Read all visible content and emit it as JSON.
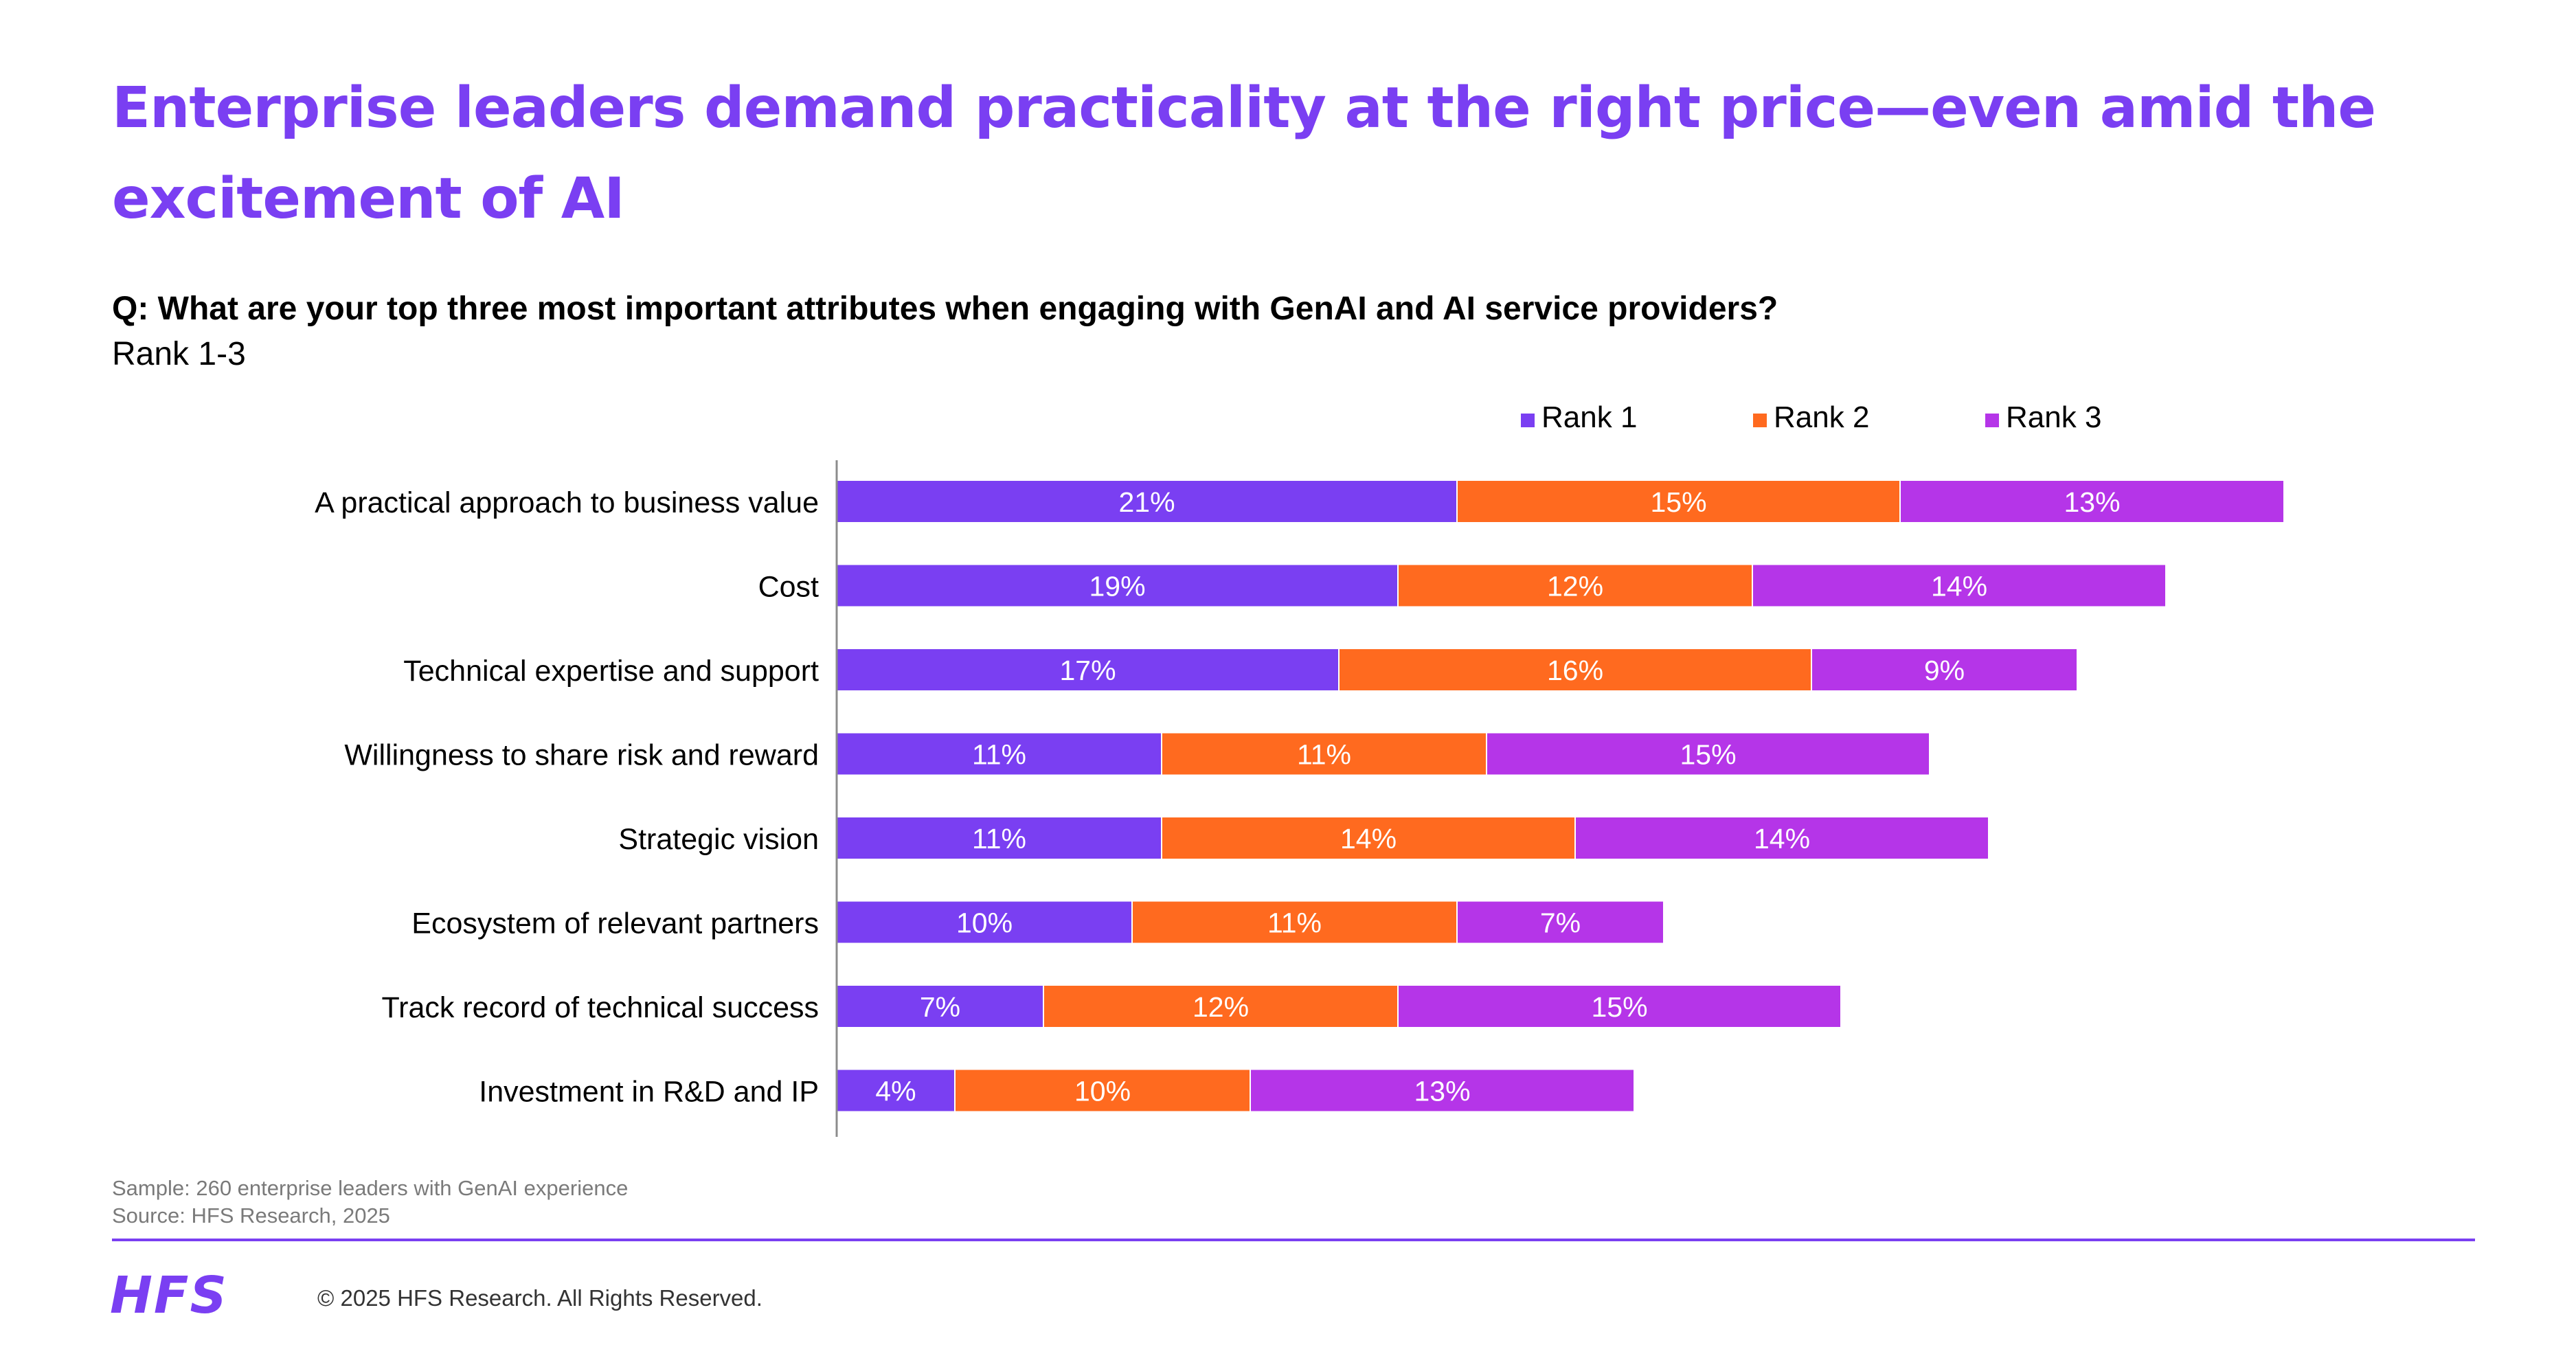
{
  "header": {
    "title": "Enterprise leaders demand practicality at the right price—even amid the excitement of AI",
    "question": "Q: What are your top three most important attributes when engaging with GenAI and AI service providers?",
    "subtitle": "Rank 1-3"
  },
  "chart_data": {
    "type": "bar",
    "orientation": "horizontal",
    "stacked": true,
    "categories": [
      "A practical approach to business value",
      "Cost",
      "Technical expertise and support",
      "Willingness to share risk and reward",
      "Strategic vision",
      "Ecosystem of relevant partners",
      "Track record of technical success",
      "Investment in R&D and IP"
    ],
    "series": [
      {
        "name": "Rank 1",
        "color": "#7a3ff2",
        "values": [
          21,
          19,
          17,
          11,
          11,
          10,
          7,
          4
        ]
      },
      {
        "name": "Rank 2",
        "color": "#ff6a1f",
        "values": [
          15,
          12,
          16,
          11,
          14,
          11,
          12,
          10
        ]
      },
      {
        "name": "Rank 3",
        "color": "#b535e8",
        "values": [
          13,
          14,
          9,
          15,
          14,
          7,
          15,
          13
        ]
      }
    ],
    "value_suffix": "%",
    "legend_position": "top-right",
    "grid": false
  },
  "footer": {
    "sample": "Sample: 260 enterprise leaders with GenAI experience",
    "source": "Source: HFS Research, 2025",
    "logo": "HFS",
    "copyright": "© 2025 HFS Research. All Rights Reserved."
  },
  "colors": {
    "brand": "#7a3ff2",
    "rank1": "#7a3ff2",
    "rank2": "#ff6a1f",
    "rank3": "#b535e8"
  }
}
